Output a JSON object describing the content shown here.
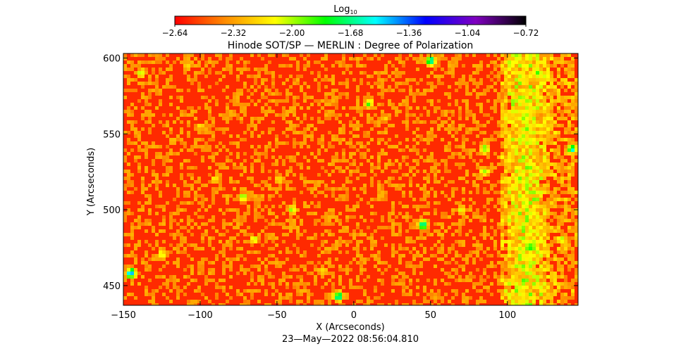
{
  "chart_data": {
    "type": "heatmap",
    "title": "Hinode SOT/SP — MERLIN : Degree of Polarization",
    "xlabel": "X (Arcseconds)",
    "ylabel": "Y (Arcseconds)",
    "xlim": [
      -150,
      146
    ],
    "ylim": [
      437,
      603
    ],
    "x_ticks": [
      -150,
      -100,
      -50,
      0,
      50,
      100
    ],
    "x_tick_labels": [
      "−150",
      "−100",
      "−50",
      "0",
      "50",
      "100"
    ],
    "y_ticks": [
      450,
      500,
      550,
      600
    ],
    "y_tick_labels": [
      "450",
      "500",
      "550",
      "600"
    ],
    "colorbar": {
      "label_base": "Log",
      "label_sub": "10",
      "range": [
        -2.64,
        -0.72
      ],
      "ticks": [
        -2.64,
        -2.32,
        -2.0,
        -1.68,
        -1.36,
        -1.04,
        -0.72
      ],
      "tick_labels": [
        "−2.64",
        "−2.32",
        "−2.00",
        "−1.68",
        "−1.36",
        "−1.04",
        "−0.72"
      ],
      "colormap": [
        "#ff0000",
        "#ff8c00",
        "#ffff00",
        "#00ff00",
        "#00ffff",
        "#0000ff",
        "#8000c0",
        "#000000"
      ]
    },
    "timestamp": "23—May—2022 08:56:04.810",
    "background_value": -2.62,
    "high_polarization_patches": [
      {
        "x": -145,
        "y": 458,
        "v": -1.3
      },
      {
        "x": -138,
        "y": 590,
        "v": -1.9
      },
      {
        "x": -125,
        "y": 470,
        "v": -1.9
      },
      {
        "x": -118,
        "y": 545,
        "v": -2.1
      },
      {
        "x": -108,
        "y": 595,
        "v": -2.0
      },
      {
        "x": -100,
        "y": 555,
        "v": -2.1
      },
      {
        "x": -90,
        "y": 520,
        "v": -2.0
      },
      {
        "x": -72,
        "y": 508,
        "v": -1.8
      },
      {
        "x": -65,
        "y": 480,
        "v": -1.9
      },
      {
        "x": -48,
        "y": 520,
        "v": -2.0
      },
      {
        "x": -40,
        "y": 500,
        "v": -1.9
      },
      {
        "x": -20,
        "y": 460,
        "v": -2.0
      },
      {
        "x": -10,
        "y": 443,
        "v": -1.4
      },
      {
        "x": 10,
        "y": 570,
        "v": -1.8
      },
      {
        "x": 20,
        "y": 560,
        "v": -2.1
      },
      {
        "x": 45,
        "y": 490,
        "v": -1.4
      },
      {
        "x": 50,
        "y": 598,
        "v": -1.4
      },
      {
        "x": 70,
        "y": 500,
        "v": -1.9
      },
      {
        "x": 85,
        "y": 540,
        "v": -1.7
      },
      {
        "x": 85,
        "y": 525,
        "v": -1.8
      },
      {
        "x": 100,
        "y": 545,
        "v": -2.0
      },
      {
        "x": 115,
        "y": 475,
        "v": -1.5
      },
      {
        "x": 120,
        "y": 590,
        "v": -1.8
      },
      {
        "x": 125,
        "y": 560,
        "v": -2.0
      },
      {
        "x": 135,
        "y": 480,
        "v": -1.9
      },
      {
        "x": 142,
        "y": 540,
        "v": -1.5
      }
    ]
  }
}
